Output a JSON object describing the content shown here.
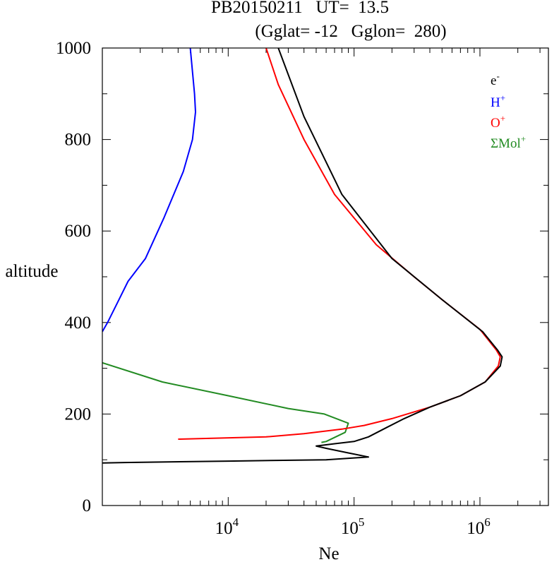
{
  "chart_data": {
    "type": "line",
    "title_line1": "PB20150211   UT=  13.5",
    "title_line2": "(Gglat= -12   Gglon=  280)",
    "xlabel": "Ne",
    "ylabel": "altitude",
    "x_scale": "log",
    "xlim": [
      1000,
      3500000
    ],
    "ylim": [
      0,
      1000
    ],
    "y_ticks": [
      0,
      200,
      400,
      600,
      800,
      1000
    ],
    "y_tick_labels": [
      "0",
      "200",
      "400",
      "600",
      "800",
      "1000"
    ],
    "x_ticks": [
      {
        "base": "10",
        "exp": "4",
        "value": 10000
      },
      {
        "base": "10",
        "exp": "5",
        "value": 100000
      },
      {
        "base": "10",
        "exp": "6",
        "value": 1000000
      }
    ],
    "series": [
      {
        "name": "e-",
        "label_base": "e",
        "label_sup": "-",
        "color": "#000000",
        "points": [
          [
            25000,
            1000
          ],
          [
            40000,
            850
          ],
          [
            80000,
            680
          ],
          [
            200000,
            540
          ],
          [
            500000,
            450
          ],
          [
            1050000,
            380
          ],
          [
            1380000,
            340
          ],
          [
            1500000,
            325
          ],
          [
            1450000,
            305
          ],
          [
            1100000,
            270
          ],
          [
            700000,
            240
          ],
          [
            400000,
            215
          ],
          [
            250000,
            190
          ],
          [
            180000,
            170
          ],
          [
            130000,
            150
          ],
          [
            100000,
            140
          ],
          [
            70000,
            135
          ],
          [
            50000,
            130
          ],
          [
            60000,
            125
          ],
          [
            90000,
            115
          ],
          [
            130000,
            106
          ],
          [
            60000,
            100
          ],
          [
            10000,
            97
          ],
          [
            1500,
            94
          ],
          [
            1000,
            93
          ]
        ]
      },
      {
        "name": "H+",
        "label_base": "H",
        "label_sup": "+",
        "color": "#0000ff",
        "points": [
          [
            5000,
            1000
          ],
          [
            5400,
            900
          ],
          [
            5500,
            860
          ],
          [
            5200,
            800
          ],
          [
            4400,
            730
          ],
          [
            3100,
            630
          ],
          [
            2200,
            540
          ],
          [
            1600,
            490
          ],
          [
            1300,
            440
          ],
          [
            1100,
            400
          ],
          [
            1000,
            380
          ]
        ]
      },
      {
        "name": "O+",
        "label_base": "O",
        "label_sup": "+",
        "color": "#ff0000",
        "points": [
          [
            20000,
            1000
          ],
          [
            25000,
            920
          ],
          [
            40000,
            800
          ],
          [
            70000,
            680
          ],
          [
            150000,
            570
          ],
          [
            300000,
            500
          ],
          [
            500000,
            450
          ],
          [
            1000000,
            385
          ],
          [
            1350000,
            340
          ],
          [
            1450000,
            325
          ],
          [
            1400000,
            305
          ],
          [
            1100000,
            270
          ],
          [
            700000,
            240
          ],
          [
            400000,
            215
          ],
          [
            200000,
            190
          ],
          [
            120000,
            175
          ],
          [
            80000,
            167
          ],
          [
            40000,
            157
          ],
          [
            20000,
            150
          ],
          [
            4000,
            145
          ]
        ]
      },
      {
        "name": "ΣMol+",
        "label_base": "ΣMol",
        "label_sup": "+",
        "color": "#228b22",
        "points": [
          [
            1000,
            312
          ],
          [
            3000,
            270
          ],
          [
            10000,
            240
          ],
          [
            30000,
            212
          ],
          [
            58000,
            200
          ],
          [
            90000,
            180
          ],
          [
            85000,
            160
          ],
          [
            60000,
            140
          ],
          [
            55000,
            138
          ]
        ]
      }
    ],
    "legend_position": "top-right"
  }
}
